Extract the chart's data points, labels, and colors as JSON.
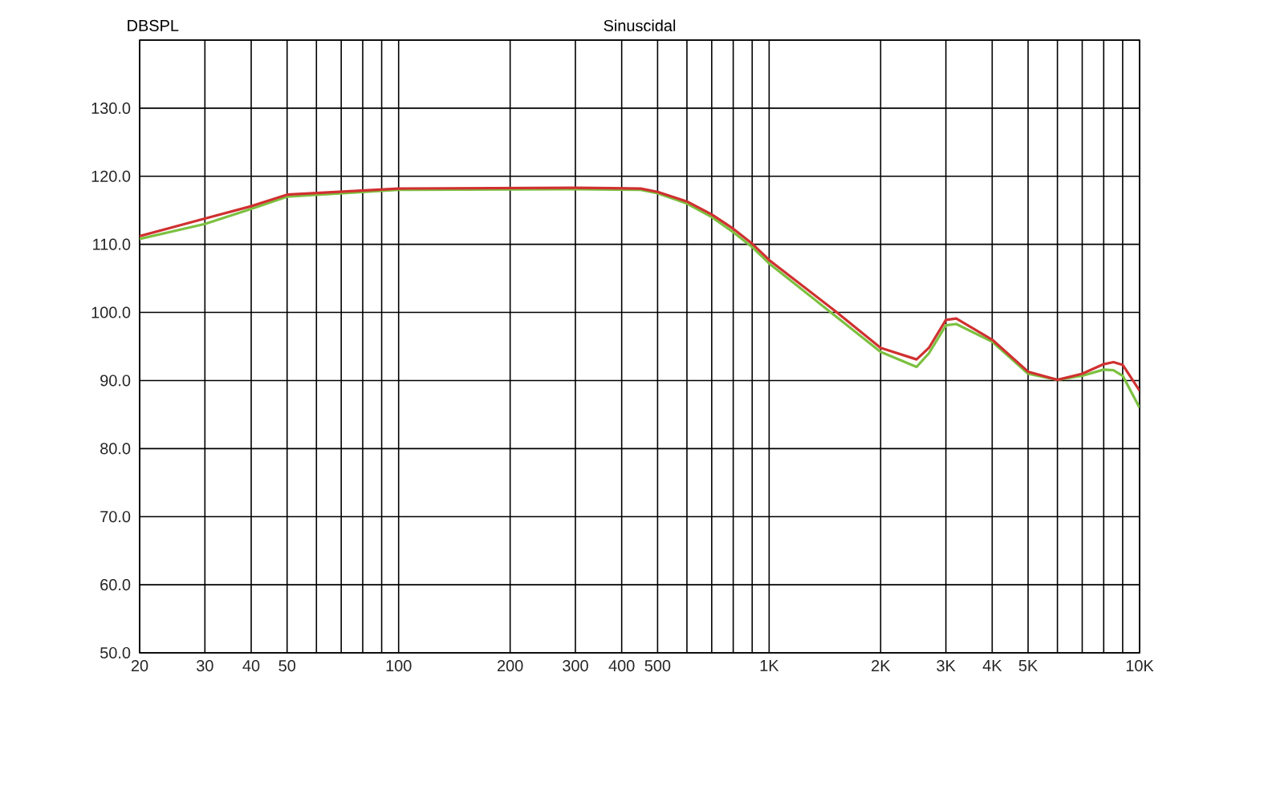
{
  "chart_data": {
    "type": "line",
    "title": "Sinuscidal",
    "ylabel": "DBSPL",
    "log": "x",
    "grid": true,
    "marker": "none",
    "line_style": "solid",
    "xlim": [
      20,
      10000
    ],
    "ylim": [
      50,
      140
    ],
    "xticks": [
      20,
      30,
      40,
      50,
      {
        "value": 60,
        "label": null
      },
      {
        "value": 70,
        "label": null
      },
      {
        "value": 80,
        "label": null
      },
      {
        "value": 90,
        "label": null
      },
      100,
      200,
      300,
      400,
      500,
      {
        "value": 600,
        "label": null
      },
      {
        "value": 700,
        "label": null
      },
      {
        "value": 800,
        "label": null
      },
      {
        "value": 900,
        "label": null
      },
      {
        "value": 1000,
        "label": "1K"
      },
      {
        "value": 2000,
        "label": "2K"
      },
      {
        "value": 3000,
        "label": "3K"
      },
      {
        "value": 4000,
        "label": "4K"
      },
      {
        "value": 5000,
        "label": "5K"
      },
      {
        "value": 6000,
        "label": null
      },
      {
        "value": 7000,
        "label": null
      },
      {
        "value": 8000,
        "label": null
      },
      {
        "value": 9000,
        "label": null
      },
      {
        "value": 10000,
        "label": "10K"
      }
    ],
    "yticks": [
      {
        "value": 50,
        "label": "50.0"
      },
      {
        "value": 60,
        "label": "60.0"
      },
      {
        "value": 70,
        "label": "70.0"
      },
      {
        "value": 80,
        "label": "80.0"
      },
      {
        "value": 90,
        "label": "90.0"
      },
      {
        "value": 100,
        "label": "100.0"
      },
      {
        "value": 110,
        "label": "110.0"
      },
      {
        "value": 120,
        "label": "120.0"
      },
      {
        "value": 130,
        "label": "130.0"
      },
      {
        "value": 140,
        "label": null
      }
    ],
    "series": [
      {
        "color": "#7cc040",
        "x": [
          20,
          30,
          40,
          50,
          100,
          300,
          450,
          500,
          600,
          700,
          800,
          900,
          1000,
          1500,
          2000,
          2500,
          2700,
          3000,
          3200,
          4000,
          5000,
          6000,
          7000,
          8000,
          8500,
          9000,
          10000
        ],
        "values": [
          110.8,
          113,
          115.2,
          117,
          118,
          118.1,
          118,
          117.5,
          116,
          114,
          111.8,
          109.6,
          107.2,
          99.6,
          94.2,
          92,
          94,
          98.1,
          98.3,
          95.7,
          91,
          90.1,
          90.7,
          91.6,
          91.5,
          90.7,
          86
        ]
      },
      {
        "color": "#d03030",
        "x": [
          20,
          30,
          40,
          50,
          100,
          300,
          450,
          500,
          600,
          700,
          800,
          900,
          1000,
          1500,
          2000,
          2500,
          2700,
          3000,
          3200,
          4000,
          5000,
          6000,
          7000,
          8000,
          8500,
          9000,
          10000
        ],
        "values": [
          111.2,
          113.8,
          115.6,
          117.3,
          118.2,
          118.3,
          118.2,
          117.7,
          116.3,
          114.4,
          112.3,
          110.1,
          107.7,
          100.3,
          94.8,
          93.1,
          94.8,
          98.9,
          99.1,
          96,
          91.3,
          90.1,
          91,
          92.4,
          92.7,
          92.3,
          88.5
        ]
      }
    ]
  }
}
